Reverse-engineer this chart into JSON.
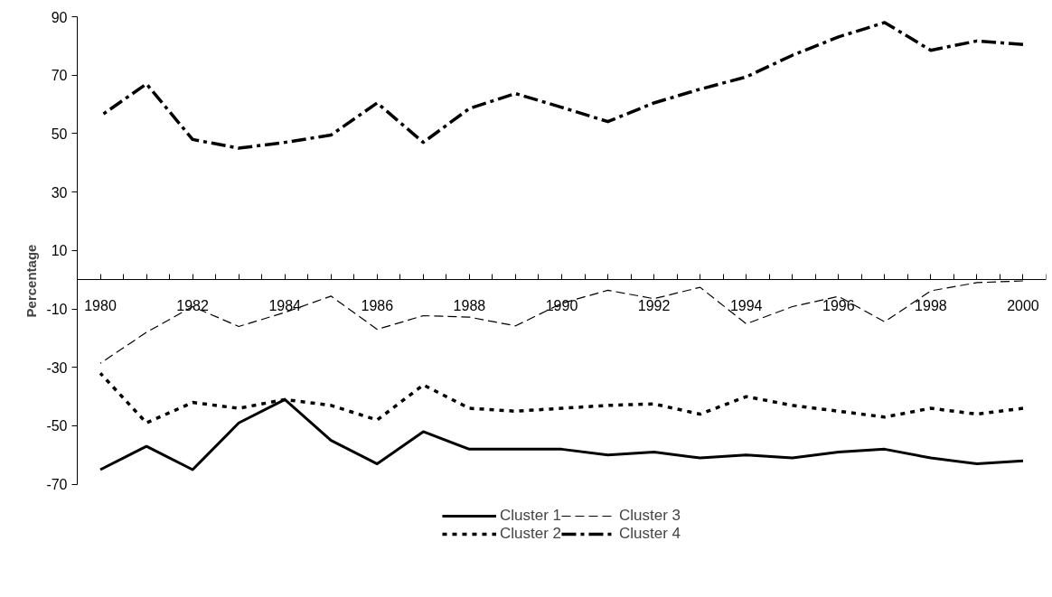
{
  "chart_data": {
    "type": "line",
    "ylabel": "Percentage",
    "x": [
      1980,
      1981,
      1982,
      1983,
      1984,
      1985,
      1986,
      1987,
      1988,
      1989,
      1990,
      1991,
      1992,
      1993,
      1994,
      1995,
      1996,
      1997,
      1998,
      1999,
      2000
    ],
    "series": [
      {
        "name": "Cluster 1",
        "color": "#000000",
        "line_style": "solid",
        "values": [
          -65,
          -57,
          -65,
          -49,
          -41,
          -55,
          -63,
          -52,
          -58,
          -58,
          -58,
          -60,
          -59,
          -61,
          -60,
          -61,
          -59,
          -58,
          -61,
          -63,
          -62
        ]
      },
      {
        "name": "Cluster 2",
        "color": "#000000",
        "line_style": "dotted",
        "values": [
          -32,
          -49,
          -42,
          -44,
          -41,
          -43,
          -48,
          -36,
          -44,
          -45,
          -44,
          -43,
          -42.5,
          -46,
          -40,
          -43,
          -45,
          -47,
          -44,
          -46,
          -44
        ]
      },
      {
        "name": "Cluster 3",
        "color": "#000000",
        "line_style": "dashed",
        "values": [
          -28.6,
          -18,
          -9.2,
          -16,
          -11.2,
          -5.6,
          -17,
          -12.3,
          -12.8,
          -15.8,
          -8.1,
          -3.6,
          -6.5,
          -2.6,
          -15.1,
          -9.2,
          -5.7,
          -14.4,
          -3.8,
          -1,
          -0.4
        ]
      },
      {
        "name": "Cluster 4",
        "color": "#000000",
        "line_style": "dashdot",
        "values": [
          56,
          67,
          48,
          45,
          47,
          49.5,
          60.5,
          47,
          58.6,
          63.7,
          59,
          54.1,
          60.5,
          65.2,
          69.4,
          76.8,
          83.1,
          88,
          78.5,
          81.7,
          80.5
        ]
      }
    ],
    "xlim": [
      1979.5,
      2000.5
    ],
    "xticks": [
      {
        "value": 1979.5,
        "label": null
      },
      {
        "value": 1980,
        "label": "1980"
      },
      {
        "value": 1980.5,
        "label": null
      },
      {
        "value": 1981,
        "label": null
      },
      {
        "value": 1981.5,
        "label": null
      },
      {
        "value": 1982,
        "label": "1982"
      },
      {
        "value": 1982.5,
        "label": null
      },
      {
        "value": 1983,
        "label": null
      },
      {
        "value": 1983.5,
        "label": null
      },
      {
        "value": 1984,
        "label": "1984"
      },
      {
        "value": 1984.5,
        "label": null
      },
      {
        "value": 1985,
        "label": null
      },
      {
        "value": 1985.5,
        "label": null
      },
      {
        "value": 1986,
        "label": "1986"
      },
      {
        "value": 1986.5,
        "label": null
      },
      {
        "value": 1987,
        "label": null
      },
      {
        "value": 1987.5,
        "label": null
      },
      {
        "value": 1988,
        "label": "1988"
      },
      {
        "value": 1988.5,
        "label": null
      },
      {
        "value": 1989,
        "label": null
      },
      {
        "value": 1989.5,
        "label": null
      },
      {
        "value": 1990,
        "label": "1990"
      },
      {
        "value": 1990.5,
        "label": null
      },
      {
        "value": 1991,
        "label": null
      },
      {
        "value": 1991.5,
        "label": null
      },
      {
        "value": 1992,
        "label": "1992"
      },
      {
        "value": 1992.5,
        "label": null
      },
      {
        "value": 1993,
        "label": null
      },
      {
        "value": 1993.5,
        "label": null
      },
      {
        "value": 1994,
        "label": "1994"
      },
      {
        "value": 1994.5,
        "label": null
      },
      {
        "value": 1995,
        "label": null
      },
      {
        "value": 1995.5,
        "label": null
      },
      {
        "value": 1996,
        "label": "1996"
      },
      {
        "value": 1996.5,
        "label": null
      },
      {
        "value": 1997,
        "label": null
      },
      {
        "value": 1997.5,
        "label": null
      },
      {
        "value": 1998,
        "label": "1998"
      },
      {
        "value": 1998.5,
        "label": null
      },
      {
        "value": 1999,
        "label": null
      },
      {
        "value": 1999.5,
        "label": null
      },
      {
        "value": 2000,
        "label": "2000"
      },
      {
        "value": 2000.5,
        "label": null
      }
    ],
    "ylim": [
      -70,
      90
    ],
    "yticks": [
      -70,
      -50,
      -30,
      -10,
      10,
      30,
      50,
      70,
      90
    ],
    "grid": false,
    "legend": "bottom",
    "marker": "none"
  }
}
